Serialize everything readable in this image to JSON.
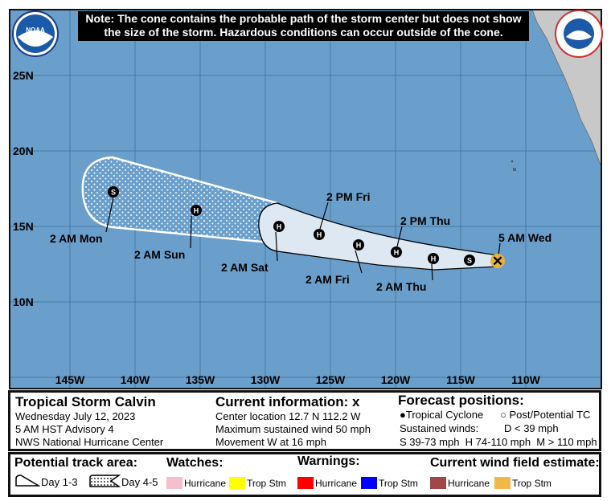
{
  "note": {
    "line1": "Note: The cone contains the probable path of the storm center but does not show",
    "line2": "the size of the storm. Hazardous conditions can occur outside of the cone."
  },
  "logos": {
    "left": "NOAA",
    "right": "NATIONAL WEATHER SERVICE"
  },
  "map": {
    "lat_labels": [
      "25N",
      "20N",
      "15N",
      "10N"
    ],
    "lon_labels": [
      "145W",
      "140W",
      "135W",
      "130W",
      "125W",
      "120W",
      "115W",
      "110W"
    ],
    "colors": {
      "ocean": "#6a9fcc",
      "land": "#c8c8c8",
      "cone": "#dde8f3",
      "current": "#e8b23a"
    },
    "track": [
      {
        "type": "S",
        "label": "2 AM Mon"
      },
      {
        "type": "H",
        "label": "2 AM Sun"
      },
      {
        "type": "H",
        "label": "2 AM Sat"
      },
      {
        "type": "H",
        "label": "2 PM Fri"
      },
      {
        "type": "H",
        "label": "2 AM Fri"
      },
      {
        "type": "H",
        "label": "2 PM Thu"
      },
      {
        "type": "H",
        "label": "2 AM Thu"
      },
      {
        "type": "S",
        "label": ""
      },
      {
        "type": "X",
        "label": "5 AM Wed"
      }
    ]
  },
  "info": {
    "storm": "Tropical Storm Calvin",
    "date": "Wednesday July 12, 2023",
    "advisory": "5 AM HST Advisory 4",
    "center": "NWS National Hurricane Center",
    "current_title": "Current information:",
    "current_symbol": "x",
    "location": "Center location 12.7 N 112.2 W",
    "wind": "Maximum sustained wind 50 mph",
    "movement": "Movement W at 16 mph",
    "forecast_title": "Forecast positions:",
    "tc": "Tropical Cyclone",
    "ptc": "Post/Potential TC",
    "sustained": "Sustained winds:",
    "d": "D < 39 mph",
    "shm": "S 39-73 mph  H 74-110 mph  M > 110 mph"
  },
  "legend": {
    "track_title": "Potential track area:",
    "day13": "Day 1-3",
    "day45": "Day 4-5",
    "watches_title": "Watches:",
    "warnings_title": "Warnings:",
    "wind_title": "Current wind field estimate:",
    "hurricane": "Hurricane",
    "tropstm": "Trop Stm",
    "colors": {
      "watch_hur": "#f7bfcc",
      "watch_ts": "#ffff00",
      "warn_hur": "#ff0000",
      "warn_ts": "#0000ff",
      "wind_hur": "#a04848",
      "wind_ts": "#f0b848"
    }
  }
}
